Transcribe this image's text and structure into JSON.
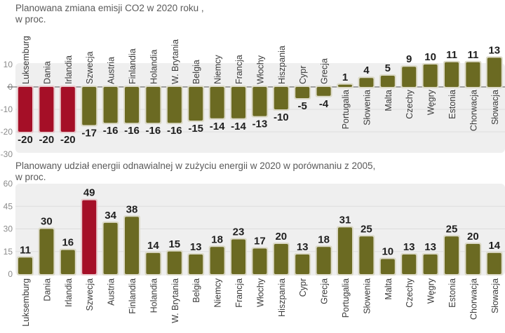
{
  "chart_data": [
    {
      "type": "bar",
      "title": "Planowana zmiana emisji CO2 w 2020 roku ,",
      "subtitle": "w proc.",
      "xlabel": "",
      "ylabel": "",
      "ylim": [
        -30,
        10
      ],
      "yticks": [
        10,
        0,
        -10,
        -20,
        -30
      ],
      "grid": true,
      "categories": [
        "Luksemburg",
        "Dania",
        "Irlandia",
        "Szwecja",
        "Austria",
        "Finlandia",
        "Holandia",
        "W. Brytania",
        "Belgia",
        "Niemcy",
        "Francja",
        "Włochy",
        "Hiszpania",
        "Cypr",
        "Grecja",
        "Portugalia",
        "Słowenia",
        "Malta",
        "Czechy",
        "Węgry",
        "Estonia",
        "Chorwacja",
        "Słowacja"
      ],
      "values": [
        -20,
        -20,
        -20,
        -17,
        -16,
        -16,
        -16,
        -16,
        -15,
        -14,
        -14,
        -13,
        -10,
        -5,
        -4,
        1,
        4,
        5,
        9,
        10,
        11,
        11,
        13
      ],
      "highlighted": [
        "Luksemburg",
        "Dania",
        "Irlandia"
      ]
    },
    {
      "type": "bar",
      "title": "Planowany udział energii odnawialnej w zużyciu energii w 2020 w porównaniu z 2005,",
      "subtitle": "w proc.",
      "xlabel": "",
      "ylabel": "",
      "ylim": [
        0,
        60
      ],
      "yticks": [
        60,
        45,
        30,
        15,
        0
      ],
      "grid": true,
      "categories": [
        "Luksemburg",
        "Dania",
        "Irlandia",
        "Szwecja",
        "Austria",
        "Finlandia",
        "Holandia",
        "W. Brytania",
        "Belgia",
        "Niemcy",
        "Francja",
        "Włochy",
        "Hiszpania",
        "Cypr",
        "Grecja",
        "Portugalia",
        "Słowenia",
        "Malta",
        "Czechy",
        "Węgry",
        "Estonia",
        "Chorwacja",
        "Słowacja"
      ],
      "values": [
        11,
        30,
        16,
        49,
        34,
        38,
        14,
        15,
        13,
        18,
        23,
        17,
        20,
        13,
        18,
        31,
        25,
        10,
        13,
        13,
        25,
        20,
        14
      ],
      "highlighted": [
        "Szwecja"
      ]
    }
  ],
  "colors": {
    "bar": "#6b6a22",
    "highlight": "#a50f27",
    "bar_border": "#dcdac8",
    "panel": "#efefef",
    "grid": "#dddddd"
  }
}
